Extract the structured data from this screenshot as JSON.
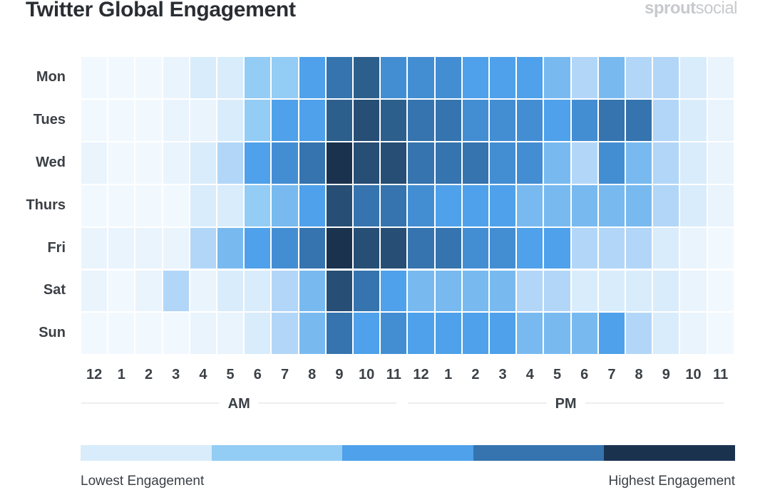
{
  "header": {
    "title": "Twitter Global Engagement",
    "brand_bold": "sprout",
    "brand_light": "social"
  },
  "colors": {
    "levels": [
      "#f2f9fe",
      "#eaf4fd",
      "#d9ecfb",
      "#b2d6f7",
      "#93ccf4",
      "#78baf0",
      "#4ea1ea",
      "#438ed3",
      "#3574ae",
      "#2d5f8c",
      "#274e74",
      "#1b324f"
    ]
  },
  "chart_data": {
    "type": "heatmap",
    "title": "Twitter Global Engagement",
    "rows": [
      "Mon",
      "Tues",
      "Wed",
      "Thurs",
      "Fri",
      "Sat",
      "Sun"
    ],
    "columns": [
      "12",
      "1",
      "2",
      "3",
      "4",
      "5",
      "6",
      "7",
      "8",
      "9",
      "10",
      "11",
      "12",
      "1",
      "2",
      "3",
      "4",
      "5",
      "6",
      "7",
      "8",
      "9",
      "10",
      "11"
    ],
    "column_groups": [
      {
        "label": "AM",
        "start": 0,
        "end": 11
      },
      {
        "label": "PM",
        "start": 12,
        "end": 23
      }
    ],
    "values": [
      [
        0,
        0,
        0,
        1,
        2,
        2,
        4,
        4,
        6,
        8,
        9,
        7,
        7,
        7,
        6,
        6,
        6,
        5,
        3,
        5,
        3,
        3,
        2,
        1
      ],
      [
        0,
        0,
        0,
        1,
        1,
        2,
        4,
        6,
        6,
        9,
        10,
        9,
        8,
        8,
        7,
        7,
        7,
        6,
        7,
        8,
        8,
        3,
        2,
        1
      ],
      [
        1,
        0,
        0,
        1,
        2,
        3,
        6,
        7,
        8,
        11,
        10,
        10,
        8,
        8,
        8,
        7,
        7,
        5,
        3,
        7,
        5,
        3,
        2,
        1
      ],
      [
        0,
        0,
        0,
        0,
        2,
        2,
        4,
        5,
        6,
        10,
        8,
        8,
        7,
        6,
        6,
        6,
        5,
        5,
        5,
        5,
        5,
        3,
        2,
        1
      ],
      [
        1,
        1,
        1,
        1,
        3,
        5,
        6,
        7,
        8,
        11,
        10,
        10,
        8,
        8,
        7,
        7,
        6,
        6,
        3,
        3,
        3,
        2,
        1,
        0
      ],
      [
        1,
        0,
        1,
        3,
        1,
        2,
        2,
        3,
        5,
        10,
        8,
        6,
        5,
        5,
        5,
        5,
        3,
        3,
        2,
        2,
        2,
        2,
        1,
        0
      ],
      [
        0,
        0,
        0,
        0,
        1,
        1,
        2,
        3,
        5,
        8,
        6,
        7,
        6,
        6,
        6,
        6,
        5,
        5,
        5,
        6,
        3,
        2,
        1,
        0
      ]
    ],
    "scale": {
      "min": 0,
      "max": 11
    },
    "legend": {
      "low_label": "Lowest Engagement",
      "high_label": "Highest Engagement",
      "colors": [
        "#d9ecfb",
        "#93ccf4",
        "#4ea1ea",
        "#3574ae",
        "#1b324f"
      ]
    }
  }
}
